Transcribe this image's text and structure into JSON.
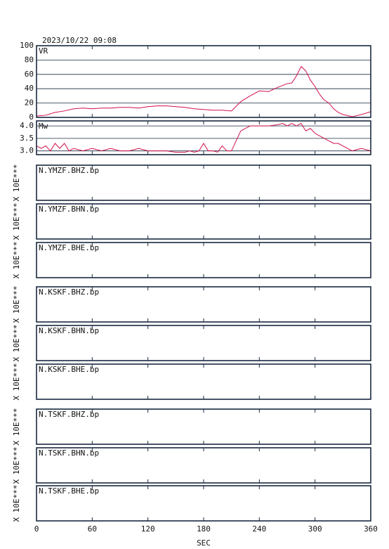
{
  "title": "2023/10/22 09:08",
  "x_axis": {
    "label": "SEC",
    "xlim": [
      0,
      360
    ],
    "xticks": [
      0,
      60,
      120,
      180,
      240,
      300,
      360
    ]
  },
  "chart_data": [
    {
      "type": "line",
      "label": "VR",
      "color": "#d0104a",
      "x": [
        0,
        10,
        20,
        30,
        40,
        50,
        60,
        70,
        80,
        90,
        100,
        110,
        120,
        130,
        140,
        150,
        160,
        170,
        180,
        190,
        200,
        210,
        220,
        230,
        240,
        250,
        260,
        270,
        275,
        280,
        285,
        290,
        295,
        300,
        305,
        310,
        315,
        320,
        325,
        330,
        340,
        350,
        360
      ],
      "values": [
        2,
        3,
        7,
        9,
        12,
        13,
        12,
        13,
        13,
        14,
        14,
        13,
        15,
        16,
        16,
        15,
        14,
        12,
        11,
        10,
        10,
        9,
        22,
        30,
        37,
        36,
        42,
        47,
        48,
        58,
        71,
        65,
        52,
        43,
        32,
        24,
        20,
        12,
        7,
        4,
        1,
        4,
        8
      ],
      "ylim": [
        0,
        100
      ],
      "yticks": [
        0,
        20,
        40,
        60,
        80,
        100
      ],
      "grid": true
    },
    {
      "type": "line",
      "label": "Mw",
      "color": "#d0104a",
      "x": [
        0,
        5,
        10,
        15,
        20,
        25,
        30,
        35,
        40,
        50,
        60,
        70,
        80,
        90,
        100,
        110,
        120,
        130,
        140,
        150,
        160,
        165,
        170,
        175,
        180,
        185,
        190,
        195,
        200,
        205,
        210,
        215,
        220,
        225,
        230,
        240,
        250,
        260,
        265,
        270,
        275,
        280,
        285,
        290,
        295,
        300,
        305,
        310,
        315,
        320,
        325,
        330,
        340,
        350,
        360
      ],
      "values": [
        3.2,
        3.1,
        3.2,
        3.0,
        3.3,
        3.1,
        3.3,
        3.0,
        3.1,
        3.0,
        3.1,
        3.0,
        3.1,
        3.0,
        3.0,
        3.1,
        3.0,
        3.0,
        3.0,
        2.95,
        2.95,
        3.0,
        2.95,
        3.0,
        3.3,
        3.0,
        3.0,
        2.95,
        3.2,
        3.0,
        3.0,
        3.4,
        3.8,
        3.9,
        4.0,
        4.0,
        4.0,
        4.05,
        4.1,
        4.0,
        4.1,
        4.0,
        4.1,
        3.8,
        3.9,
        3.7,
        3.6,
        3.5,
        3.4,
        3.3,
        3.3,
        3.2,
        3.0,
        3.1,
        3.0
      ],
      "ylim": [
        2.85,
        4.2
      ],
      "yticks": [
        {
          "value": 3,
          "label": "3.0"
        },
        3.5,
        {
          "value": 4,
          "label": "4.0"
        }
      ],
      "grid": true
    }
  ],
  "traces": [
    {
      "label": "N.YMZF.BHZ.bp",
      "scale_label": "X 10E***"
    },
    {
      "label": "N.YMZF.BHN.bp",
      "scale_label": "X 10E***"
    },
    {
      "label": "N.YMZF.BHE.bp",
      "scale_label": "X 10E***"
    },
    {
      "label": "N.KSKF.BHZ.bp",
      "scale_label": "X 10E***"
    },
    {
      "label": "N.KSKF.BHN.bp",
      "scale_label": "X 10E***"
    },
    {
      "label": "N.KSKF.BHE.bp",
      "scale_label": "X 10E***"
    },
    {
      "label": "N.TSKF.BHZ.bp",
      "scale_label": "X 10E***"
    },
    {
      "label": "N.TSKF.BHN.bp",
      "scale_label": "X 10E***"
    },
    {
      "label": "N.TSKF.BHE.bp",
      "scale_label": "X 10E***"
    }
  ]
}
